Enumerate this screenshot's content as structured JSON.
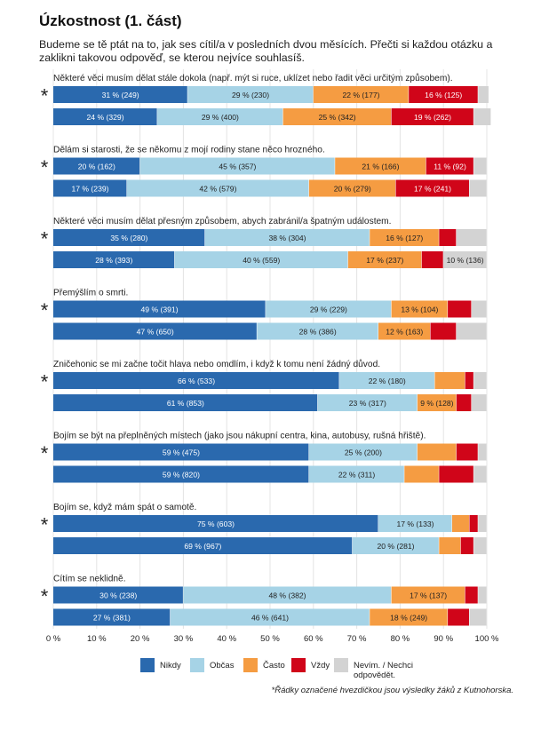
{
  "title": "Úzkostnost (1. část)",
  "subtitle": "Budeme se tě ptát na to, jak ses cítil/a v posledních dvou měsících. Přečti si každou otázku a zaklikni takovou odpověď, se kterou nejvíce souhlasíš.",
  "footnote": "*Řádky označené hvezdičkou jsou výsledky žáků z Kutnohorska.",
  "highlight_marker": "*",
  "colors": {
    "Nikdy": "#2a69ae",
    "Občas": "#a6d3e6",
    "Často": "#f59c42",
    "Vždy": "#d00519",
    "Nevím. / Nechci odpovědět.": "#d3d3d3"
  },
  "chart_data": {
    "type": "bar",
    "orientation": "horizontal",
    "stacked": true,
    "percent_scale": true,
    "xlim": [
      0,
      100
    ],
    "x_ticks": [
      "0 %",
      "10 %",
      "20 %",
      "30 %",
      "40 %",
      "50 %",
      "60 %",
      "70 %",
      "80 %",
      "90 %",
      "100 %"
    ],
    "grid": true,
    "legend_position": "bottom",
    "legend": [
      "Nikdy",
      "Občas",
      "Často",
      "Vždy",
      "Nevím. / Nechci odpovědět."
    ],
    "categories": [
      "Některé věci musím dělat stále dokola (např. mýt si ruce, uklízet nebo řadit věci určitým způsobem).",
      "Dělám si starosti, že se někomu z mojí rodiny stane něco hrozného.",
      "Některé věci musím dělat přesným způsobem, abych zabránil/a špatným událostem.",
      "Přemýšlím o smrti.",
      "Zničehonic se mi začne točit hlava nebo omdlím, i když k tomu není žádný důvod.",
      "Bojím se být na přeplněných místech (jako jsou nákupní centra, kina, autobusy, rušná hřiště).",
      "Bojím se, když mám spát o samotě.",
      "Cítím se neklidně."
    ],
    "rows": [
      {
        "question": 0,
        "highlighted": true,
        "values": [
          31,
          29,
          22,
          16,
          2.5
        ],
        "labels": [
          "31 % (249)",
          "29 % (230)",
          "22 % (177)",
          "16 % (125)",
          ""
        ]
      },
      {
        "question": 0,
        "highlighted": false,
        "values": [
          24,
          29,
          25,
          19,
          4
        ],
        "labels": [
          "24 % (329)",
          "29 % (400)",
          "25 % (342)",
          "19 % (262)",
          ""
        ]
      },
      {
        "question": 1,
        "highlighted": true,
        "values": [
          20,
          45,
          21,
          11,
          3
        ],
        "labels": [
          "20 % (162)",
          "45 % (357)",
          "21 % (166)",
          "11 % (92)",
          ""
        ]
      },
      {
        "question": 1,
        "highlighted": false,
        "values": [
          17,
          42,
          20,
          17,
          4
        ],
        "labels": [
          "17 % (239)",
          "42 % (579)",
          "20 % (279)",
          "17 % (241)",
          ""
        ]
      },
      {
        "question": 2,
        "highlighted": true,
        "values": [
          35,
          38,
          16,
          4,
          7
        ],
        "labels": [
          "35 % (280)",
          "38 % (304)",
          "16 % (127)",
          "",
          ""
        ]
      },
      {
        "question": 2,
        "highlighted": false,
        "values": [
          28,
          40,
          17,
          5,
          10
        ],
        "labels": [
          "28 % (393)",
          "40 % (559)",
          "17 % (237)",
          "",
          "10 % (136)"
        ]
      },
      {
        "question": 3,
        "highlighted": true,
        "values": [
          49,
          29,
          13,
          5.5,
          3.5
        ],
        "labels": [
          "49 % (391)",
          "29 % (229)",
          "13 % (104)",
          "",
          ""
        ]
      },
      {
        "question": 3,
        "highlighted": false,
        "values": [
          47,
          28,
          12,
          6,
          7
        ],
        "labels": [
          "47 % (650)",
          "28 % (386)",
          "12 % (163)",
          "",
          ""
        ]
      },
      {
        "question": 4,
        "highlighted": true,
        "values": [
          66,
          22,
          7,
          2,
          3
        ],
        "labels": [
          "66 % (533)",
          "22 % (180)",
          "",
          "",
          ""
        ]
      },
      {
        "question": 4,
        "highlighted": false,
        "values": [
          61,
          23,
          9,
          3.5,
          3.5
        ],
        "labels": [
          "61 % (853)",
          "23 % (317)",
          "9 % (128)",
          "",
          ""
        ]
      },
      {
        "question": 5,
        "highlighted": true,
        "values": [
          59,
          25,
          9,
          5,
          2
        ],
        "labels": [
          "59 % (475)",
          "25 % (200)",
          "",
          "",
          ""
        ]
      },
      {
        "question": 5,
        "highlighted": false,
        "values": [
          59,
          22,
          8,
          8,
          3
        ],
        "labels": [
          "59 % (820)",
          "22 % (311)",
          "",
          "",
          ""
        ]
      },
      {
        "question": 6,
        "highlighted": true,
        "values": [
          75,
          17,
          4,
          2,
          2
        ],
        "labels": [
          "75 % (603)",
          "17 % (133)",
          "",
          "",
          ""
        ]
      },
      {
        "question": 6,
        "highlighted": false,
        "values": [
          69,
          20,
          5,
          3,
          3
        ],
        "labels": [
          "69 % (967)",
          "20 % (281)",
          "",
          "",
          ""
        ]
      },
      {
        "question": 7,
        "highlighted": true,
        "values": [
          30,
          48,
          17,
          3,
          2
        ],
        "labels": [
          "30 % (238)",
          "48 % (382)",
          "17 % (137)",
          "",
          ""
        ]
      },
      {
        "question": 7,
        "highlighted": false,
        "values": [
          27,
          46,
          18,
          5,
          4
        ],
        "labels": [
          "27 % (381)",
          "46 % (641)",
          "18 % (249)",
          "",
          ""
        ]
      }
    ]
  }
}
